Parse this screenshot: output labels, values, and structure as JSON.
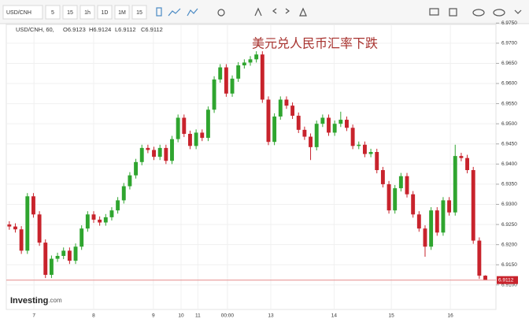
{
  "toolbar": {
    "symbol": "USD/CNH",
    "intervals": [
      "5",
      "15",
      "1h",
      "1D",
      "1M",
      "15"
    ]
  },
  "chart_data": {
    "type": "candlestick",
    "header": {
      "symbol": "USD/CNH, 60,",
      "ohlc": [
        "O6.9123",
        "H6.9124",
        "L6.9112",
        "C6.9112"
      ]
    },
    "title": "美元兑人民币汇率下跌",
    "logo": "Investing",
    "logo_suffix": ".com",
    "up_color": "#2fa52f",
    "down_color": "#c8232c",
    "open": [
      6.925,
      6.9245,
      6.9238,
      6.9185,
      6.932,
      6.9275,
      6.9205,
      6.9125,
      6.9165,
      6.9172,
      6.9185,
      6.916,
      6.9195,
      6.924,
      6.9275,
      6.9262,
      6.9255,
      6.9268,
      6.9285,
      6.931,
      6.9345,
      6.9372,
      6.9405,
      6.944,
      6.9435,
      6.9418,
      6.944,
      6.9408,
      6.9462,
      6.9515,
      6.9475,
      6.9445,
      6.9478,
      6.9465,
      6.9535,
      6.961,
      6.964,
      6.9575,
      6.9612,
      6.9645,
      6.9652,
      6.966,
      6.9672,
      6.956,
      6.9455,
      6.9518,
      6.956,
      6.9545,
      6.952,
      6.9485,
      6.9468,
      6.9442,
      6.95,
      6.9515,
      6.9478,
      6.95,
      6.951,
      6.949,
      6.9445,
      6.9448,
      6.9425,
      6.943,
      6.9385,
      6.935,
      6.9285,
      6.934,
      6.937,
      6.9325,
      6.9275,
      6.924,
      6.9195,
      6.9285,
      6.923,
      6.931,
      6.928,
      6.942,
      6.9415,
      6.9385,
      6.921,
      6.9123
    ],
    "high": [
      6.9258,
      6.9253,
      6.9246,
      6.9328,
      6.9328,
      6.9283,
      6.9213,
      6.9173,
      6.918,
      6.9193,
      6.9193,
      6.9203,
      6.9248,
      6.9283,
      6.9283,
      6.927,
      6.9276,
      6.9293,
      6.9318,
      6.9353,
      6.938,
      6.9413,
      6.9448,
      6.9448,
      6.9443,
      6.9448,
      6.9448,
      6.947,
      6.9523,
      6.9523,
      6.9483,
      6.9486,
      6.9486,
      6.9543,
      6.9618,
      6.9648,
      6.9648,
      6.962,
      6.9653,
      6.966,
      6.9668,
      6.968,
      6.968,
      6.9568,
      6.9526,
      6.9568,
      6.9568,
      6.9553,
      6.9528,
      6.9493,
      6.9476,
      6.9508,
      6.9523,
      6.9523,
      6.9508,
      6.953,
      6.9518,
      6.9498,
      6.9456,
      6.9456,
      6.9438,
      6.9438,
      6.9393,
      6.9358,
      6.9348,
      6.9378,
      6.9378,
      6.9333,
      6.9283,
      6.9248,
      6.9293,
      6.9293,
      6.9318,
      6.9318,
      6.9448,
      6.9428,
      6.9423,
      6.9393,
      6.9218,
      6.9124
    ],
    "low": [
      6.9237,
      6.923,
      6.9177,
      6.9177,
      6.9267,
      6.9197,
      6.9117,
      6.9117,
      6.9157,
      6.9164,
      6.9152,
      6.9152,
      6.9187,
      6.9232,
      6.9254,
      6.9247,
      6.9247,
      6.926,
      6.9277,
      6.9302,
      6.9337,
      6.9364,
      6.9397,
      6.9427,
      6.941,
      6.941,
      6.94,
      6.94,
      6.9454,
      6.9467,
      6.9437,
      6.9437,
      6.9457,
      6.9457,
      6.9527,
      6.9602,
      6.9567,
      6.9567,
      6.9604,
      6.9637,
      6.9644,
      6.9652,
      6.9552,
      6.9447,
      6.9447,
      6.951,
      6.9537,
      6.9512,
      6.9477,
      6.946,
      6.941,
      6.9434,
      6.9492,
      6.947,
      6.947,
      6.9492,
      6.9482,
      6.9437,
      6.9437,
      6.9417,
      6.9417,
      6.9377,
      6.9342,
      6.9277,
      6.9277,
      6.9332,
      6.9317,
      6.9267,
      6.9232,
      6.917,
      6.9187,
      6.9222,
      6.9222,
      6.9272,
      6.9272,
      6.9407,
      6.9377,
      6.9202,
      6.9115,
      6.9112
    ],
    "close": [
      6.9245,
      6.9238,
      6.9185,
      6.932,
      6.9275,
      6.9205,
      6.9125,
      6.9165,
      6.9172,
      6.9185,
      6.916,
      6.9195,
      6.924,
      6.9275,
      6.9262,
      6.9255,
      6.9268,
      6.9285,
      6.931,
      6.9345,
      6.9372,
      6.9405,
      6.944,
      6.9435,
      6.9418,
      6.944,
      6.9408,
      6.9462,
      6.9515,
      6.9475,
      6.9445,
      6.9478,
      6.9465,
      6.9535,
      6.961,
      6.964,
      6.9575,
      6.9612,
      6.9645,
      6.9652,
      6.966,
      6.9672,
      6.956,
      6.9455,
      6.9518,
      6.956,
      6.9545,
      6.952,
      6.9485,
      6.9468,
      6.9442,
      6.95,
      6.9515,
      6.9478,
      6.95,
      6.951,
      6.949,
      6.9445,
      6.9448,
      6.9425,
      6.943,
      6.9385,
      6.935,
      6.9285,
      6.934,
      6.937,
      6.9325,
      6.9275,
      6.924,
      6.9195,
      6.9285,
      6.923,
      6.931,
      6.928,
      6.942,
      6.9415,
      6.9385,
      6.921,
      6.9123,
      6.9112
    ],
    "xlim": [
      0,
      81
    ],
    "xticks": [
      {
        "value": 4.6,
        "label": "7"
      },
      {
        "value": 14.5,
        "label": "8"
      },
      {
        "value": 24.4,
        "label": "9"
      },
      {
        "value": 29,
        "label": "10"
      },
      {
        "value": 31.8,
        "label": "11"
      },
      {
        "value": 36.7,
        "label": "00:00"
      },
      {
        "value": 43.9,
        "label": "13"
      },
      {
        "value": 54.4,
        "label": "14"
      },
      {
        "value": 63.9,
        "label": "15"
      },
      {
        "value": 73.7,
        "label": "16"
      }
    ],
    "ylim": [
      6.9086,
      6.9774
    ],
    "yticks": [
      {
        "value": 6.91,
        "label": "6.9100"
      },
      {
        "value": 6.915,
        "label": "6.9150"
      },
      {
        "value": 6.92,
        "label": "6.9200"
      },
      {
        "value": 6.925,
        "label": "6.9250"
      },
      {
        "value": 6.93,
        "label": "6.9300"
      },
      {
        "value": 6.935,
        "label": "6.9350"
      },
      {
        "value": 6.94,
        "label": "6.9400"
      },
      {
        "value": 6.945,
        "label": "6.9450"
      },
      {
        "value": 6.95,
        "label": "6.9500"
      },
      {
        "value": 6.955,
        "label": "6.9550"
      },
      {
        "value": 6.96,
        "label": "6.9600"
      },
      {
        "value": 6.965,
        "label": "6.9650"
      },
      {
        "value": 6.97,
        "label": "6.9700"
      },
      {
        "value": 6.975,
        "label": "6.9750"
      }
    ],
    "last_price": {
      "value": 6.9112,
      "label": "6.9112"
    },
    "grid": true
  }
}
